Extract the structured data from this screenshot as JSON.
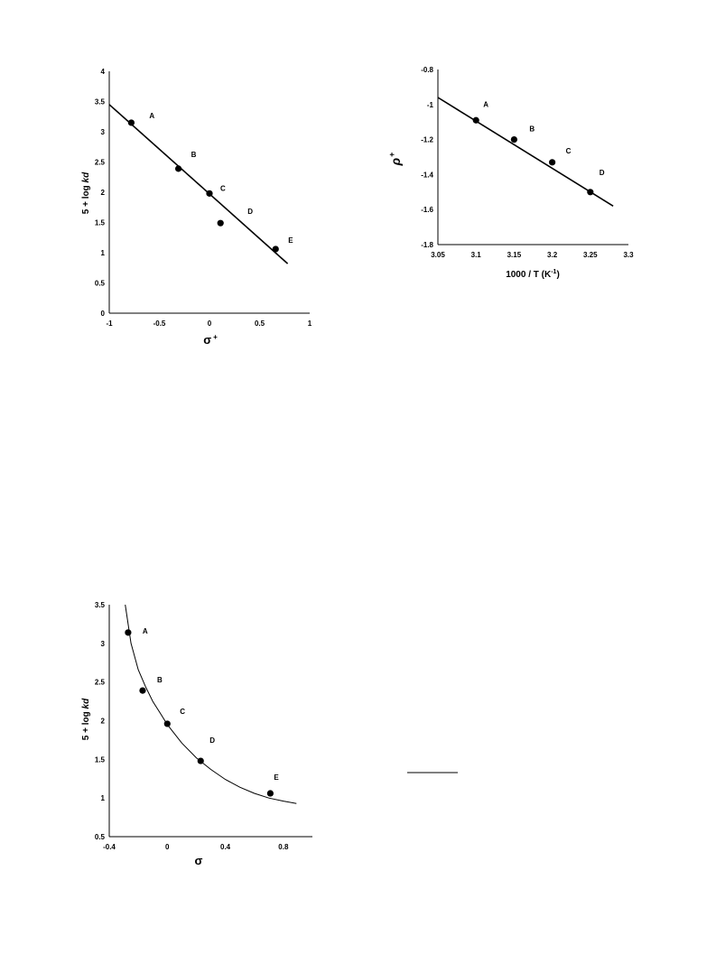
{
  "chart_data": [
    {
      "type": "scatter",
      "xlabel_symbol": "σ",
      "xlabel_sup": "+",
      "ylabel": "5 + log ",
      "ylabel_italic": "kd",
      "xlim": [
        -1,
        1
      ],
      "ylim": [
        0,
        4
      ],
      "xticks": [
        -1,
        -0.5,
        0,
        0.5,
        1
      ],
      "xtick_labels": [
        "-1",
        "-0.5",
        "0",
        "0.5",
        "1"
      ],
      "yticks": [
        0,
        0.5,
        1,
        1.5,
        2,
        2.5,
        3,
        3.5,
        4
      ],
      "ytick_labels": [
        "0",
        "0.5",
        "1",
        "1.5",
        "2",
        "2.5",
        "3",
        "3.5",
        "4"
      ],
      "series": [
        {
          "points": [
            {
              "label": "A",
              "x": -0.78,
              "y": 3.15
            },
            {
              "label": "B",
              "x": -0.31,
              "y": 2.39
            },
            {
              "label": "C",
              "x": 0.0,
              "y": 1.98
            },
            {
              "label": "D",
              "x": 0.11,
              "y": 1.49
            },
            {
              "label": "E",
              "x": 0.66,
              "y": 1.06
            }
          ]
        }
      ],
      "fit_line": {
        "x": [
          -1.0,
          0.78
        ],
        "y": [
          3.45,
          0.82
        ]
      },
      "grid": false
    },
    {
      "type": "scatter",
      "xlabel": "1000 / T (K",
      "xlabel_sup": "-1",
      "xlabel_end": ")",
      "ylabel_symbol": "ρ",
      "ylabel_sup": "+",
      "xlim": [
        3.05,
        3.3
      ],
      "ylim": [
        -1.8,
        -0.8
      ],
      "xticks": [
        3.05,
        3.1,
        3.15,
        3.2,
        3.25,
        3.3
      ],
      "xtick_labels": [
        "3.05",
        "3.1",
        "3.15",
        "3.2",
        "3.25",
        "3.3"
      ],
      "yticks": [
        -1.8,
        -1.6,
        -1.4,
        -1.2,
        -1.0,
        -0.8
      ],
      "ytick_labels": [
        "-1.8",
        "-1.6",
        "-1.4",
        "-1.2",
        "-1",
        "-0.8"
      ],
      "series": [
        {
          "points": [
            {
              "label": "A",
              "x": 3.1,
              "y": -1.09
            },
            {
              "label": "B",
              "x": 3.15,
              "y": -1.2
            },
            {
              "label": "C",
              "x": 3.2,
              "y": -1.33
            },
            {
              "label": "D",
              "x": 3.25,
              "y": -1.5
            }
          ]
        }
      ],
      "fit_line": {
        "x": [
          3.05,
          3.28
        ],
        "y": [
          -0.96,
          -1.58
        ]
      },
      "grid": false
    },
    {
      "type": "scatter",
      "xlabel_symbol": "σ",
      "ylabel": "5 + log ",
      "ylabel_italic": "kd",
      "xlim": [
        -0.4,
        1.0
      ],
      "ylim": [
        0.5,
        3.5
      ],
      "xticks": [
        -0.4,
        0,
        0.4,
        0.8
      ],
      "xtick_labels": [
        "-0.4",
        "0",
        "0.4",
        "0.8"
      ],
      "yticks": [
        0.5,
        1,
        1.5,
        2,
        2.5,
        3,
        3.5
      ],
      "ytick_labels": [
        "0.5",
        "1",
        "1.5",
        "2",
        "2.5",
        "3",
        "3.5"
      ],
      "series": [
        {
          "points": [
            {
              "label": "A",
              "x": -0.27,
              "y": 3.14
            },
            {
              "label": "B",
              "x": -0.17,
              "y": 2.39
            },
            {
              "label": "C",
              "x": 0.0,
              "y": 1.96
            },
            {
              "label": "D",
              "x": 0.23,
              "y": 1.48
            },
            {
              "label": "E",
              "x": 0.71,
              "y": 1.06
            }
          ]
        }
      ],
      "fit_curve": {
        "x": [
          -0.29,
          -0.25,
          -0.2,
          -0.15,
          -0.1,
          -0.05,
          0.0,
          0.1,
          0.2,
          0.3,
          0.4,
          0.5,
          0.6,
          0.7,
          0.8,
          0.89
        ],
        "y": [
          3.5,
          3.0,
          2.66,
          2.44,
          2.25,
          2.1,
          1.95,
          1.71,
          1.52,
          1.37,
          1.24,
          1.14,
          1.06,
          1.0,
          0.96,
          0.93
        ]
      },
      "grid": false
    }
  ]
}
